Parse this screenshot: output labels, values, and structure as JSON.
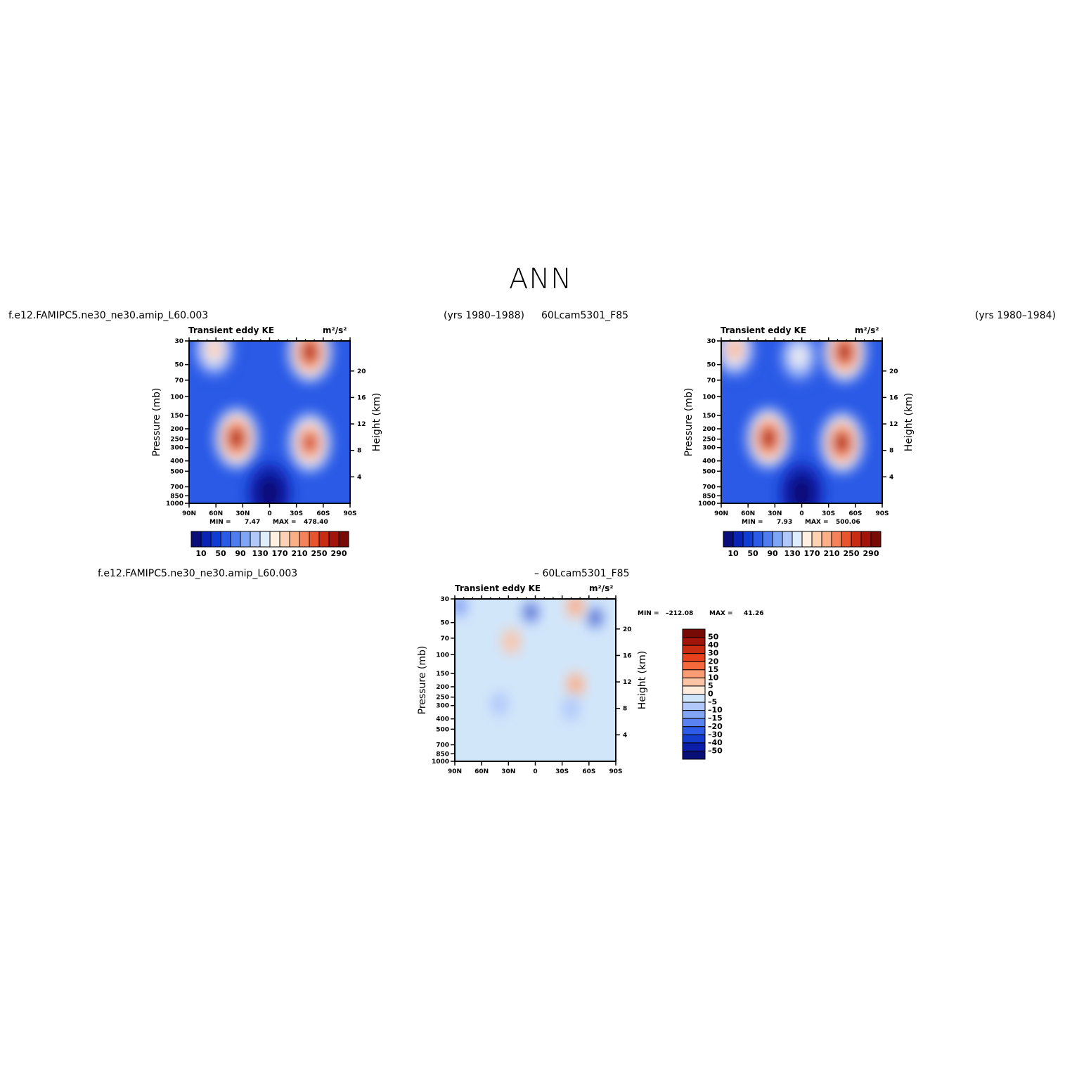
{
  "page": {
    "title": "ANN",
    "case_left": "f.e12.FAMIPC5.ne30_ne30.amip_L60.003",
    "years_left": "(yrs 1980–1988)",
    "case_right": "60Lcam5301_F85",
    "years_right": "(yrs 1980–1984)",
    "diff_case_a": "f.e12.FAMIPC5.ne30_ne30.amip_L60.003",
    "diff_case_b": "– 60Lcam5301_F85"
  },
  "chart_data": [
    {
      "type": "heatmap",
      "panel": "test",
      "title": "Transient eddy KE",
      "units": "m²/s²",
      "xlabel": "",
      "ylabel": "Pressure (mb)",
      "ylabel_right": "Height (km)",
      "x_ticks": [
        "90N",
        "60N",
        "30N",
        "0",
        "30S",
        "60S",
        "90S"
      ],
      "x_lim": [
        90,
        -90
      ],
      "y_ticks": [
        30,
        50,
        70,
        100,
        150,
        200,
        250,
        300,
        400,
        500,
        700,
        850,
        1000
      ],
      "y_lim": [
        1000,
        30
      ],
      "y_scale": "log",
      "height_ticks": [
        4,
        8,
        12,
        16,
        20
      ],
      "min_label": "MIN =",
      "min": "7.47",
      "max_label": "MAX =",
      "max": "478.40",
      "colorbar_labels": [
        "10",
        "50",
        "90",
        "130",
        "170",
        "210",
        "250",
        "290"
      ],
      "colorbar_colors": [
        "#0a0f78",
        "#0a23b4",
        "#0f3cd2",
        "#2a5ae6",
        "#4f7df0",
        "#7fa5f5",
        "#b0c8fa",
        "#e0ecff",
        "#fff0e0",
        "#fdd2b4",
        "#fbaf87",
        "#f5825a",
        "#e6552d",
        "#c82d14",
        "#a0140a",
        "#780a05"
      ],
      "features": [
        {
          "lat": 62,
          "p": 36,
          "v": 240
        },
        {
          "lat": -45,
          "p": 38,
          "v": 460
        },
        {
          "lat": 37,
          "p": 245,
          "v": 410
        },
        {
          "lat": -45,
          "p": 270,
          "v": 380
        },
        {
          "lat": 0,
          "p": 800,
          "v": 5
        }
      ]
    },
    {
      "type": "heatmap",
      "panel": "control",
      "title": "Transient eddy KE",
      "units": "m²/s²",
      "xlabel": "",
      "ylabel": "Pressure (mb)",
      "ylabel_right": "Height (km)",
      "x_ticks": [
        "90N",
        "60N",
        "30N",
        "0",
        "30S",
        "60S",
        "90S"
      ],
      "x_lim": [
        90,
        -90
      ],
      "y_ticks": [
        30,
        50,
        70,
        100,
        150,
        200,
        250,
        300,
        400,
        500,
        700,
        850,
        1000
      ],
      "y_lim": [
        1000,
        30
      ],
      "y_scale": "log",
      "height_ticks": [
        4,
        8,
        12,
        16,
        20
      ],
      "min_label": "MIN =",
      "min": "7.93",
      "max_label": "MAX =",
      "max": "500.06",
      "colorbar_labels": [
        "10",
        "50",
        "90",
        "130",
        "170",
        "210",
        "250",
        "290"
      ],
      "colorbar_colors": [
        "#0a0f78",
        "#0a23b4",
        "#0f3cd2",
        "#2a5ae6",
        "#4f7df0",
        "#7fa5f5",
        "#b0c8fa",
        "#e0ecff",
        "#fff0e0",
        "#fdd2b4",
        "#fbaf87",
        "#f5825a",
        "#e6552d",
        "#c82d14",
        "#a0140a",
        "#780a05"
      ],
      "features": [
        {
          "lat": 75,
          "p": 36,
          "v": 300
        },
        {
          "lat": 3,
          "p": 42,
          "v": 200
        },
        {
          "lat": -48,
          "p": 38,
          "v": 480
        },
        {
          "lat": 37,
          "p": 245,
          "v": 430
        },
        {
          "lat": -45,
          "p": 270,
          "v": 400
        },
        {
          "lat": 0,
          "p": 800,
          "v": 5
        }
      ]
    },
    {
      "type": "heatmap",
      "panel": "difference",
      "title": "Transient eddy KE",
      "units": "m²/s²",
      "xlabel": "",
      "ylabel": "Pressure (mb)",
      "ylabel_right": "Height (km)",
      "x_ticks": [
        "90N",
        "60N",
        "30N",
        "0",
        "30S",
        "60S",
        "90S"
      ],
      "x_lim": [
        90,
        -90
      ],
      "y_ticks": [
        30,
        50,
        70,
        100,
        150,
        200,
        250,
        300,
        400,
        500,
        700,
        850,
        1000
      ],
      "y_lim": [
        1000,
        30
      ],
      "y_scale": "log",
      "height_ticks": [
        4,
        8,
        12,
        16,
        20
      ],
      "min_label": "MIN =",
      "min": "–212.08",
      "max_label": "MAX =",
      "max": "41.26",
      "colorbar_labels": [
        "50",
        "40",
        "30",
        "20",
        "15",
        "10",
        "5",
        "0",
        "–5",
        "–10",
        "–15",
        "–20",
        "–30",
        "–40",
        "–50"
      ],
      "colorbar_colors": [
        "#780a05",
        "#a0140a",
        "#c82d14",
        "#e6421e",
        "#f5693c",
        "#fa9b73",
        "#fcc3a5",
        "#feebdc",
        "#d2e6fa",
        "#b0c8fa",
        "#82a5f5",
        "#5a82f0",
        "#2d5ae6",
        "#143ccd",
        "#0a1eaa",
        "#0a0f78"
      ],
      "features": [
        {
          "lat": 5,
          "p": 40,
          "v": -90
        },
        {
          "lat": -67,
          "p": 45,
          "v": -80
        },
        {
          "lat": 85,
          "p": 35,
          "v": -40
        },
        {
          "lat": -45,
          "p": 35,
          "v": 40
        },
        {
          "lat": -45,
          "p": 190,
          "v": 35
        },
        {
          "lat": 27,
          "p": 75,
          "v": 15
        },
        {
          "lat": -40,
          "p": 320,
          "v": -30
        },
        {
          "lat": 40,
          "p": 290,
          "v": -30
        }
      ]
    }
  ]
}
